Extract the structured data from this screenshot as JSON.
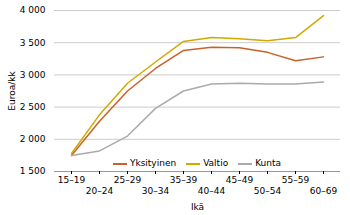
{
  "chart_data": {
    "type": "line",
    "categories": [
      "15–19",
      "20–24",
      "25–29",
      "30–34",
      "35–39",
      "40–44",
      "45–49",
      "50–54",
      "55–59",
      "60–69"
    ],
    "series": [
      {
        "name": "Yksityinen",
        "color": "#C8622A",
        "values": [
          1750,
          2280,
          2750,
          3100,
          3380,
          3430,
          3420,
          3350,
          3220,
          3280
        ]
      },
      {
        "name": "Valtio",
        "color": "#D4A800",
        "values": [
          1780,
          2380,
          2870,
          3200,
          3520,
          3580,
          3560,
          3530,
          3580,
          3920
        ]
      },
      {
        "name": "Kunta",
        "color": "#AAAAAA",
        "values": [
          1750,
          1820,
          2050,
          2480,
          2750,
          2860,
          2870,
          2860,
          2860,
          2890
        ]
      }
    ],
    "xlabel": "Ikä",
    "ylabel": "Euroa/kk",
    "ylim": [
      1500,
      4000
    ],
    "yticks": [
      {
        "value": 1500,
        "label": "1 500"
      },
      {
        "value": 2000,
        "label": "2 000"
      },
      {
        "value": 2500,
        "label": "2 500"
      },
      {
        "value": 3000,
        "label": "3 000"
      },
      {
        "value": 3500,
        "label": "3 500"
      },
      {
        "value": 4000,
        "label": "4 000"
      }
    ],
    "grid": true,
    "legend": "bottom"
  }
}
